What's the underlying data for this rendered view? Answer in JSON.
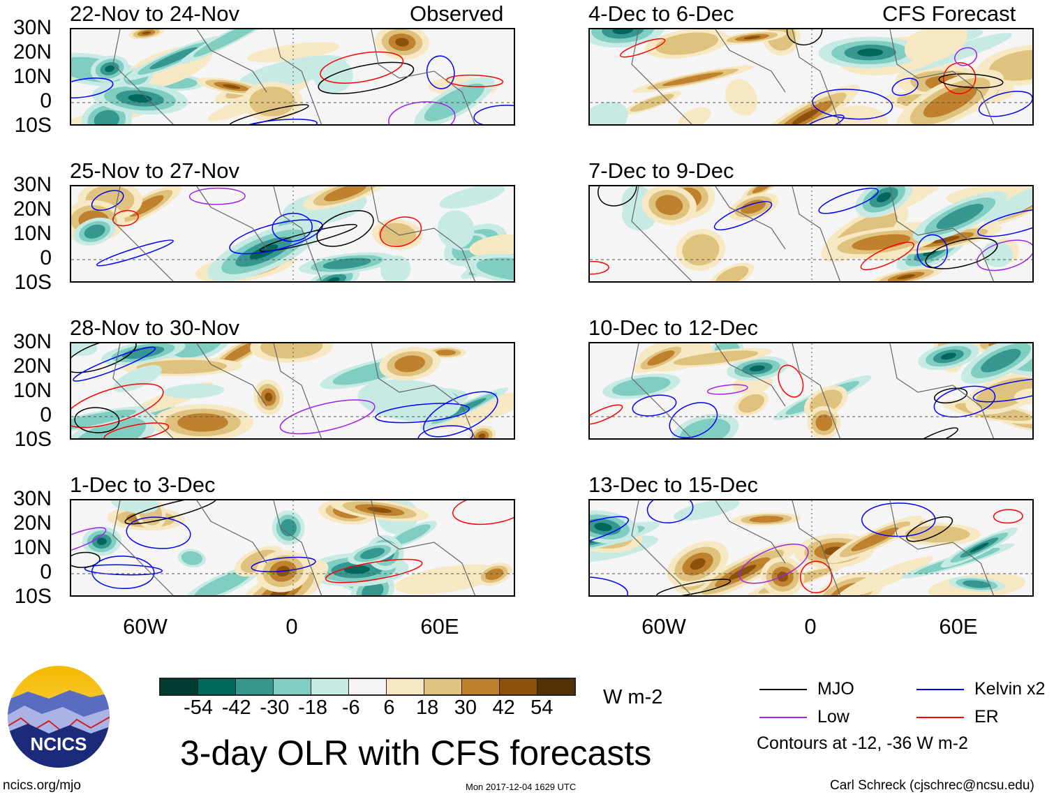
{
  "header": {
    "left_label": "Observed",
    "right_label": "CFS Forecast"
  },
  "observed_panels": [
    {
      "title": "22-Nov to 24-Nov"
    },
    {
      "title": "25-Nov to 27-Nov"
    },
    {
      "title": "28-Nov to 30-Nov"
    },
    {
      "title": "1-Dec to 3-Dec"
    }
  ],
  "forecast_panels": [
    {
      "title": "4-Dec to 6-Dec"
    },
    {
      "title": "7-Dec to 9-Dec"
    },
    {
      "title": "10-Dec to 12-Dec"
    },
    {
      "title": "13-Dec to 15-Dec"
    }
  ],
  "lat_labels": [
    "30N",
    "20N",
    "10N",
    "0",
    "10S"
  ],
  "lon_labels": [
    "60W",
    "0",
    "60E"
  ],
  "colorbar": {
    "colors": [
      "#003c30",
      "#01665e",
      "#35978f",
      "#80cdc1",
      "#c7eae5",
      "#f5f5f5",
      "#f6e8c3",
      "#dfc27d",
      "#bf812d",
      "#8c510a",
      "#543005"
    ],
    "ticks": [
      "-54",
      "-42",
      "-30",
      "-18",
      "-6",
      "6",
      "18",
      "30",
      "42",
      "54"
    ],
    "units": "W m-2"
  },
  "legend": {
    "items": [
      {
        "label": "MJO",
        "color": "#000000"
      },
      {
        "label": "Kelvin x2",
        "color": "#0000ff"
      },
      {
        "label": "Low",
        "color": "#a020f0"
      },
      {
        "label": "ER",
        "color": "#ff0000"
      }
    ],
    "contours_note": "Contours at -12, -36 W m-2"
  },
  "title": "3-day OLR with CFS forecasts",
  "logo_text": "NCICS",
  "footer": {
    "website": "ncics.org/mjo",
    "timestamp": "Mon 2017-12-04 1629 UTC",
    "credit": "Carl Schreck (cjschrec@ncsu.edu)"
  }
}
